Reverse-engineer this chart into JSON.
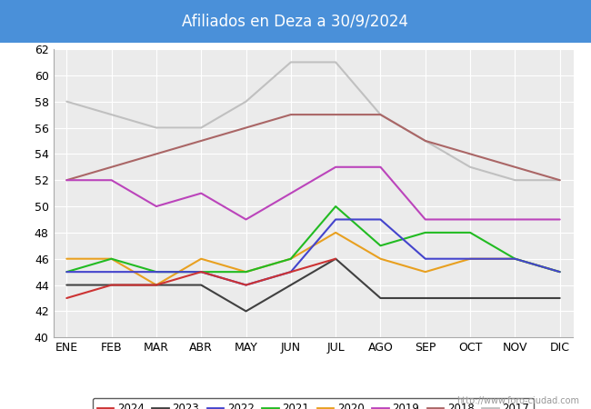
{
  "title": "Afiliados en Deza a 30/9/2024",
  "title_bg_color": "#4a90d9",
  "title_text_color": "white",
  "months": [
    "ENE",
    "FEB",
    "MAR",
    "ABR",
    "MAY",
    "JUN",
    "JUL",
    "AGO",
    "SEP",
    "OCT",
    "NOV",
    "DIC"
  ],
  "ylim": [
    40,
    62
  ],
  "yticks": [
    40,
    42,
    44,
    46,
    48,
    50,
    52,
    54,
    56,
    58,
    60,
    62
  ],
  "series": {
    "2024": {
      "color": "#cc3333",
      "data": [
        43,
        44,
        44,
        45,
        44,
        45,
        46,
        null,
        null,
        null,
        null,
        null
      ]
    },
    "2023": {
      "color": "#404040",
      "data": [
        44,
        44,
        44,
        44,
        42,
        44,
        46,
        43,
        43,
        43,
        43,
        43
      ]
    },
    "2022": {
      "color": "#4444cc",
      "data": [
        45,
        45,
        45,
        45,
        44,
        45,
        49,
        49,
        46,
        46,
        46,
        45
      ]
    },
    "2021": {
      "color": "#22bb22",
      "data": [
        45,
        46,
        45,
        45,
        45,
        46,
        50,
        47,
        48,
        48,
        46,
        45
      ]
    },
    "2020": {
      "color": "#e8a020",
      "data": [
        46,
        46,
        44,
        46,
        45,
        46,
        48,
        46,
        45,
        46,
        46,
        45
      ]
    },
    "2019": {
      "color": "#bb44bb",
      "data": [
        52,
        52,
        50,
        51,
        49,
        51,
        53,
        53,
        49,
        49,
        49,
        49
      ]
    },
    "2018": {
      "color": "#aa6666",
      "data": [
        52,
        53,
        54,
        55,
        56,
        57,
        57,
        57,
        55,
        54,
        53,
        52
      ]
    },
    "2017": {
      "color": "#c0c0c0",
      "data": [
        58,
        57,
        56,
        56,
        58,
        61,
        61,
        57,
        55,
        53,
        52,
        52
      ]
    }
  },
  "watermark": "http://www.foro-ciudad.com"
}
